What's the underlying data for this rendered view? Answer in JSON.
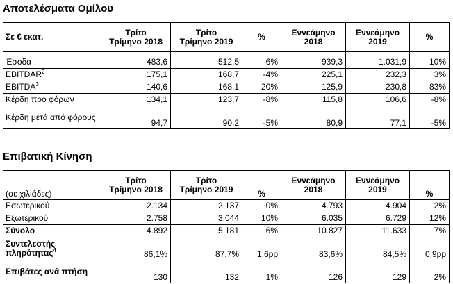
{
  "group_results": {
    "title": "Αποτελέσματα Ομίλου",
    "corner_label": "Σε € εκατ.",
    "headers": [
      {
        "line1": "Τρίτο",
        "line2": "Τρίμηνο 2018"
      },
      {
        "line1": "Τρίτο",
        "line2": "Τρίμηνο 2019"
      },
      {
        "line1": "%",
        "line2": ""
      },
      {
        "line1": "Εννεάμηνο",
        "line2": "2018"
      },
      {
        "line1": "Εννεάμηνο",
        "line2": "2019"
      },
      {
        "line1": "%",
        "line2": ""
      }
    ],
    "rows": [
      {
        "label": "Έσοδα",
        "sup": "",
        "values": [
          "483,6",
          "512,5",
          "6%",
          "939,3",
          "1.031,9",
          "10%"
        ]
      },
      {
        "label": "EBITDAR",
        "sup": "2",
        "values": [
          "175,1",
          "168,7",
          "-4%",
          "225,1",
          "232,3",
          "3%"
        ]
      },
      {
        "label": "EBITDA",
        "sup": "3",
        "values": [
          "140,6",
          "168,1",
          "20%",
          "125,9",
          "230,8",
          "83%"
        ]
      },
      {
        "label": "Κέρδη προ φόρων",
        "sup": "",
        "values": [
          "134,1",
          "123,7",
          "-8%",
          "115,8",
          "106,6",
          "-8%"
        ]
      },
      {
        "label": "Κέρδη μετά από φόρους",
        "sup": "",
        "values": [
          "94,7",
          "90,2",
          "-5%",
          "80,9",
          "77,1",
          "-5%"
        ]
      }
    ]
  },
  "passenger_traffic": {
    "title": "Επιβατική Κίνηση",
    "corner_label": "(σε χιλιάδες)",
    "headers": [
      {
        "line1": "Τρίτο",
        "line2": "Τρίμηνο 2018"
      },
      {
        "line1": "Τρίτο",
        "line2": "Τρίμηνο 2019"
      },
      {
        "line1": "%",
        "line2": ""
      },
      {
        "line1": "Εννεάμηνο",
        "line2": "2018"
      },
      {
        "line1": "Εννεάμηνο",
        "line2": "2019"
      },
      {
        "line1": "%",
        "line2": ""
      }
    ],
    "rows": [
      {
        "label": "Εσωτερικού",
        "sup": "",
        "values": [
          "2.134",
          "2.137",
          "0%",
          "4.793",
          "4.904",
          "2%"
        ]
      },
      {
        "label": "Εξωτερικού",
        "sup": "",
        "values": [
          "2.758",
          "3.044",
          "10%",
          "6.035",
          "6.729",
          "12%"
        ]
      },
      {
        "label": "Σύνολο",
        "sup": "",
        "values": [
          "4.892",
          "5.181",
          "6%",
          "10.827",
          "11.633",
          "7%"
        ]
      },
      {
        "label": "Συντελεστής πληρότητας",
        "sup": "4",
        "values": [
          "86,1%",
          "87,7%",
          "1,6pp",
          "83,6%",
          "84,5%",
          "0,9pp"
        ]
      },
      {
        "label": "Επιβάτες ανά πτήση",
        "sup": "",
        "values": [
          "130",
          "132",
          "1%",
          "126",
          "129",
          "2%"
        ]
      }
    ]
  }
}
